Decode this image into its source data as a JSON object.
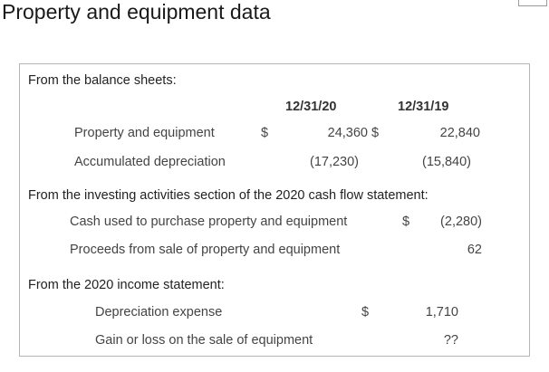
{
  "title": "Property and equipment data",
  "balance_sheet": {
    "heading": "From the balance sheets:",
    "col1_header": "12/31/20",
    "col2_header": "12/31/19",
    "rows": [
      {
        "label": "Property and equipment",
        "cur1": "$",
        "val1": "24,360",
        "cur2": "$",
        "val2": "22,840"
      },
      {
        "label": "Accumulated depreciation",
        "val1": "(17,230)",
        "val2": "(15,840)"
      }
    ]
  },
  "cash_flow": {
    "heading": "From the investing activities section of the 2020 cash flow statement:",
    "rows": [
      {
        "label": "Cash used to purchase property and equipment",
        "cur": "$",
        "val": "(2,280)"
      },
      {
        "label": "Proceeds from sale of property and equipment",
        "val": "62"
      }
    ]
  },
  "income_statement": {
    "heading": "From the 2020 income statement:",
    "rows": [
      {
        "label": "Depreciation expense",
        "cur": "$",
        "val": "1,710"
      },
      {
        "label": "Gain or loss on the sale of equipment",
        "val": "??"
      }
    ]
  }
}
